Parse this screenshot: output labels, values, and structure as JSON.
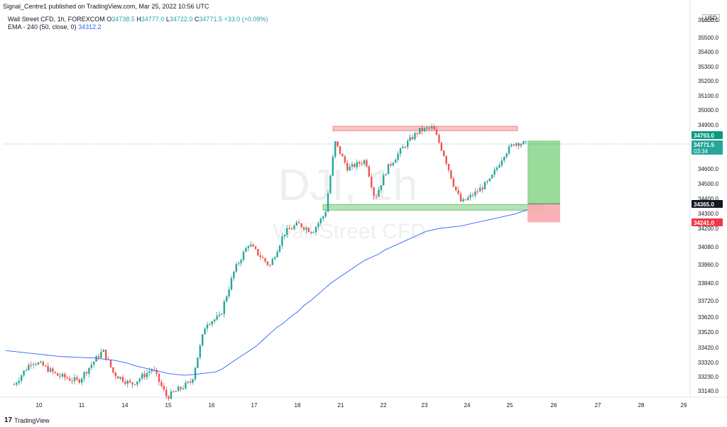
{
  "header": {
    "published_line": "Signal_Centre1 published on TradingView.com, Mar 25, 2022 10:56 UTC",
    "symbol_line": "Wall Street CFD, 1h, FOREXCOM",
    "o_label": "O",
    "o_value": "34738.5",
    "h_label": "H",
    "h_value": "34777.0",
    "l_label": "L",
    "l_value": "34722.0",
    "c_label": "C",
    "c_value": "34771.5",
    "change": "+33.0 (+0.09%)"
  },
  "indicator": {
    "label": "EMA - 240 (50, close, 0)",
    "value": "34312.2"
  },
  "currency": "USD",
  "watermark": {
    "symbol": "DJI, 1h",
    "name": "Wall Street CFD"
  },
  "footer": {
    "logo": "17",
    "brand": "TradingView"
  },
  "colors": {
    "up": "#26a69a",
    "down": "#ef5350",
    "ema": "#2962ff",
    "resistance": "#f7b5b9",
    "support": "#a5dea8",
    "target": "#8fd68f",
    "stop": "#f7a9ac"
  },
  "chart_data": {
    "type": "candlestick",
    "symbol": "Wall Street CFD",
    "timeframe": "1h",
    "x_ticks": [
      "10",
      "11",
      "14",
      "15",
      "16",
      "17",
      "18",
      "21",
      "22",
      "23",
      "24",
      "25",
      "26",
      "27",
      "28",
      "29"
    ],
    "y_ticks": [
      35600.0,
      35500.0,
      35400.0,
      35300.0,
      35200.0,
      35100.0,
      35000.0,
      34900.0,
      34600.0,
      34500.0,
      34400.0,
      34300.0,
      34200.0,
      34080.0,
      33960.0,
      33840.0,
      33720.0,
      33620.0,
      33520.0,
      33420.0,
      33320.0,
      33230.0,
      33140.0
    ],
    "y_range": [
      33090,
      35700
    ],
    "price_labels": [
      {
        "label": "34793.0",
        "color": "#089981"
      },
      {
        "label": "34771.5",
        "sub": "03:34",
        "color": "#26a69a"
      },
      {
        "label": "34365.0",
        "color": "#131722"
      },
      {
        "label": "34241.0",
        "color": "#f23645"
      }
    ],
    "resistance_zone": [
      34860,
      34890
    ],
    "support_zone": [
      34335,
      34365
    ],
    "position": {
      "entry": 34365.0,
      "target": 34793.0,
      "stop": 34241.0
    },
    "ema_series": [
      33400,
      33395,
      33390,
      33385,
      33380,
      33375,
      33370,
      33365,
      33360,
      33358,
      33356,
      33354,
      33352,
      33350,
      33345,
      33340,
      33335,
      33325,
      33315,
      33300,
      33290,
      33280,
      33270,
      33260,
      33250,
      33245,
      33240,
      33240,
      33245,
      33250,
      33255,
      33260,
      33280,
      33310,
      33340,
      33370,
      33400,
      33430,
      33470,
      33510,
      33550,
      33580,
      33620,
      33650,
      33690,
      33720,
      33760,
      33800,
      33840,
      33870,
      33900,
      33930,
      33960,
      33990,
      34010,
      34030,
      34060,
      34080,
      34100,
      34120,
      34140,
      34160,
      34180,
      34190,
      34200,
      34205,
      34210,
      34215,
      34225,
      34235,
      34245,
      34255,
      34265,
      34275,
      34285,
      34295,
      34310,
      34325
    ]
  }
}
